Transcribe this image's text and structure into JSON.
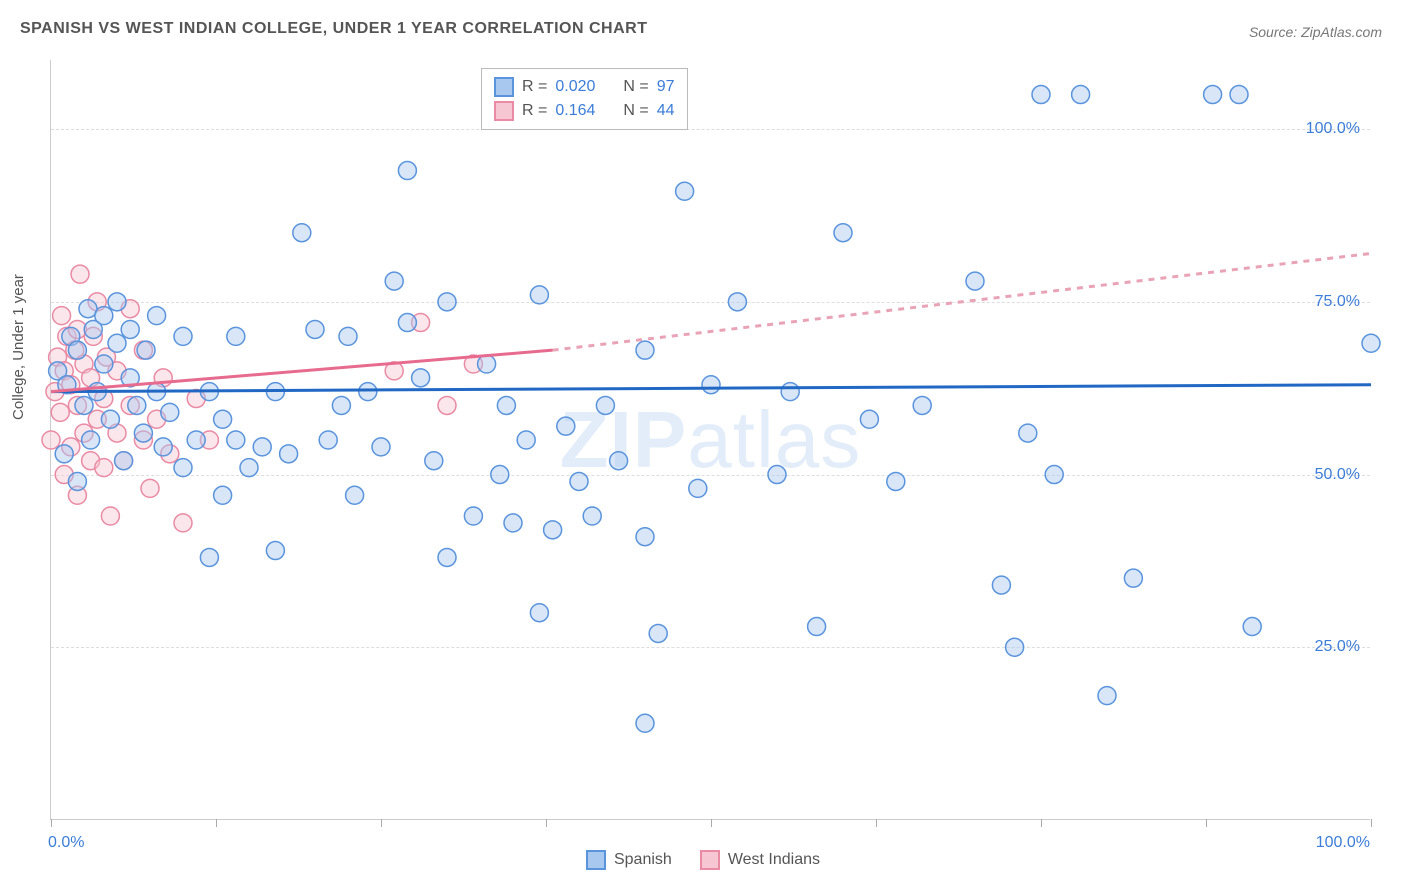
{
  "title": "SPANISH VS WEST INDIAN COLLEGE, UNDER 1 YEAR CORRELATION CHART",
  "source": "Source: ZipAtlas.com",
  "ylabel": "College, Under 1 year",
  "watermark_bold": "ZIP",
  "watermark_light": "atlas",
  "chart": {
    "type": "scatter",
    "xlim": [
      0,
      100
    ],
    "ylim": [
      0,
      110
    ],
    "y_ticks": [
      25,
      50,
      75,
      100
    ],
    "y_tick_labels": [
      "25.0%",
      "50.0%",
      "75.0%",
      "100.0%"
    ],
    "x_tick_labels": {
      "left": "0.0%",
      "right": "100.0%"
    },
    "x_tick_positions": [
      0,
      12.5,
      25,
      37.5,
      50,
      62.5,
      75,
      87.5,
      100
    ],
    "background_color": "#ffffff",
    "grid_color": "#dddddd",
    "marker_radius": 9,
    "marker_opacity": 0.45,
    "trend_line_width": 3,
    "series": {
      "spanish": {
        "label": "Spanish",
        "fill": "#a8c8ef",
        "stroke": "#5a94dd",
        "r_value": "0.020",
        "n_value": "97",
        "trend": {
          "x1": 0,
          "y1": 62,
          "x2": 100,
          "y2": 63,
          "color": "#2168c4"
        },
        "points": [
          [
            0.5,
            65
          ],
          [
            1,
            53
          ],
          [
            1.2,
            63
          ],
          [
            1.5,
            70
          ],
          [
            2,
            49
          ],
          [
            2,
            68
          ],
          [
            2.5,
            60
          ],
          [
            2.8,
            74
          ],
          [
            3,
            55
          ],
          [
            3.2,
            71
          ],
          [
            3.5,
            62
          ],
          [
            4,
            66
          ],
          [
            4,
            73
          ],
          [
            4.5,
            58
          ],
          [
            5,
            69
          ],
          [
            5,
            75
          ],
          [
            5.5,
            52
          ],
          [
            6,
            64
          ],
          [
            6,
            71
          ],
          [
            6.5,
            60
          ],
          [
            7,
            56
          ],
          [
            7.2,
            68
          ],
          [
            8,
            62
          ],
          [
            8,
            73
          ],
          [
            8.5,
            54
          ],
          [
            9,
            59
          ],
          [
            10,
            51
          ],
          [
            10,
            70
          ],
          [
            11,
            55
          ],
          [
            12,
            38
          ],
          [
            12,
            62
          ],
          [
            13,
            47
          ],
          [
            13,
            58
          ],
          [
            14,
            55
          ],
          [
            14,
            70
          ],
          [
            15,
            51
          ],
          [
            16,
            54
          ],
          [
            17,
            39
          ],
          [
            17,
            62
          ],
          [
            18,
            53
          ],
          [
            19,
            85
          ],
          [
            20,
            71
          ],
          [
            21,
            55
          ],
          [
            22,
            60
          ],
          [
            22.5,
            70
          ],
          [
            23,
            47
          ],
          [
            24,
            62
          ],
          [
            25,
            54
          ],
          [
            26,
            78
          ],
          [
            27,
            72
          ],
          [
            27,
            94
          ],
          [
            28,
            64
          ],
          [
            29,
            52
          ],
          [
            30,
            38
          ],
          [
            30,
            75
          ],
          [
            32,
            44
          ],
          [
            33,
            66
          ],
          [
            34,
            50
          ],
          [
            34.5,
            60
          ],
          [
            35,
            43
          ],
          [
            36,
            55
          ],
          [
            37,
            30
          ],
          [
            37,
            76
          ],
          [
            38,
            42
          ],
          [
            39,
            57
          ],
          [
            40,
            49
          ],
          [
            41,
            44
          ],
          [
            42,
            60
          ],
          [
            43,
            52
          ],
          [
            45,
            14
          ],
          [
            45,
            41
          ],
          [
            45,
            68
          ],
          [
            46,
            27
          ],
          [
            48,
            91
          ],
          [
            49,
            48
          ],
          [
            50,
            63
          ],
          [
            52,
            75
          ],
          [
            55,
            50
          ],
          [
            56,
            62
          ],
          [
            58,
            28
          ],
          [
            60,
            85
          ],
          [
            62,
            58
          ],
          [
            64,
            49
          ],
          [
            66,
            60
          ],
          [
            70,
            78
          ],
          [
            72,
            34
          ],
          [
            73,
            25
          ],
          [
            74,
            56
          ],
          [
            75,
            105
          ],
          [
            76,
            50
          ],
          [
            78,
            105
          ],
          [
            80,
            18
          ],
          [
            82,
            35
          ],
          [
            88,
            105
          ],
          [
            90,
            105
          ],
          [
            91,
            28
          ],
          [
            100,
            69
          ]
        ]
      },
      "west_indians": {
        "label": "West Indians",
        "fill": "#f6c7d2",
        "stroke": "#ea8aa4",
        "r_value": "0.164",
        "n_value": "44",
        "trend_solid": {
          "x1": 0,
          "y1": 62,
          "x2": 38,
          "y2": 68,
          "color": "#e76b8e"
        },
        "trend_dash": {
          "x1": 38,
          "y1": 68,
          "x2": 100,
          "y2": 82,
          "color": "#e9a3b7"
        },
        "points": [
          [
            0,
            55
          ],
          [
            0.3,
            62
          ],
          [
            0.5,
            67
          ],
          [
            0.7,
            59
          ],
          [
            0.8,
            73
          ],
          [
            1,
            50
          ],
          [
            1,
            65
          ],
          [
            1.2,
            70
          ],
          [
            1.5,
            54
          ],
          [
            1.5,
            63
          ],
          [
            1.8,
            68
          ],
          [
            2,
            47
          ],
          [
            2,
            60
          ],
          [
            2,
            71
          ],
          [
            2.2,
            79
          ],
          [
            2.5,
            56
          ],
          [
            2.5,
            66
          ],
          [
            3,
            52
          ],
          [
            3,
            64
          ],
          [
            3.2,
            70
          ],
          [
            3.5,
            58
          ],
          [
            3.5,
            75
          ],
          [
            4,
            51
          ],
          [
            4,
            61
          ],
          [
            4.2,
            67
          ],
          [
            4.5,
            44
          ],
          [
            5,
            56
          ],
          [
            5,
            65
          ],
          [
            5.5,
            52
          ],
          [
            6,
            60
          ],
          [
            6,
            74
          ],
          [
            7,
            55
          ],
          [
            7,
            68
          ],
          [
            7.5,
            48
          ],
          [
            8,
            58
          ],
          [
            8.5,
            64
          ],
          [
            9,
            53
          ],
          [
            10,
            43
          ],
          [
            11,
            61
          ],
          [
            12,
            55
          ],
          [
            26,
            65
          ],
          [
            28,
            72
          ],
          [
            30,
            60
          ],
          [
            32,
            66
          ]
        ]
      }
    },
    "legend_stats": {
      "r_label": "R =",
      "n_label": "N ="
    }
  }
}
